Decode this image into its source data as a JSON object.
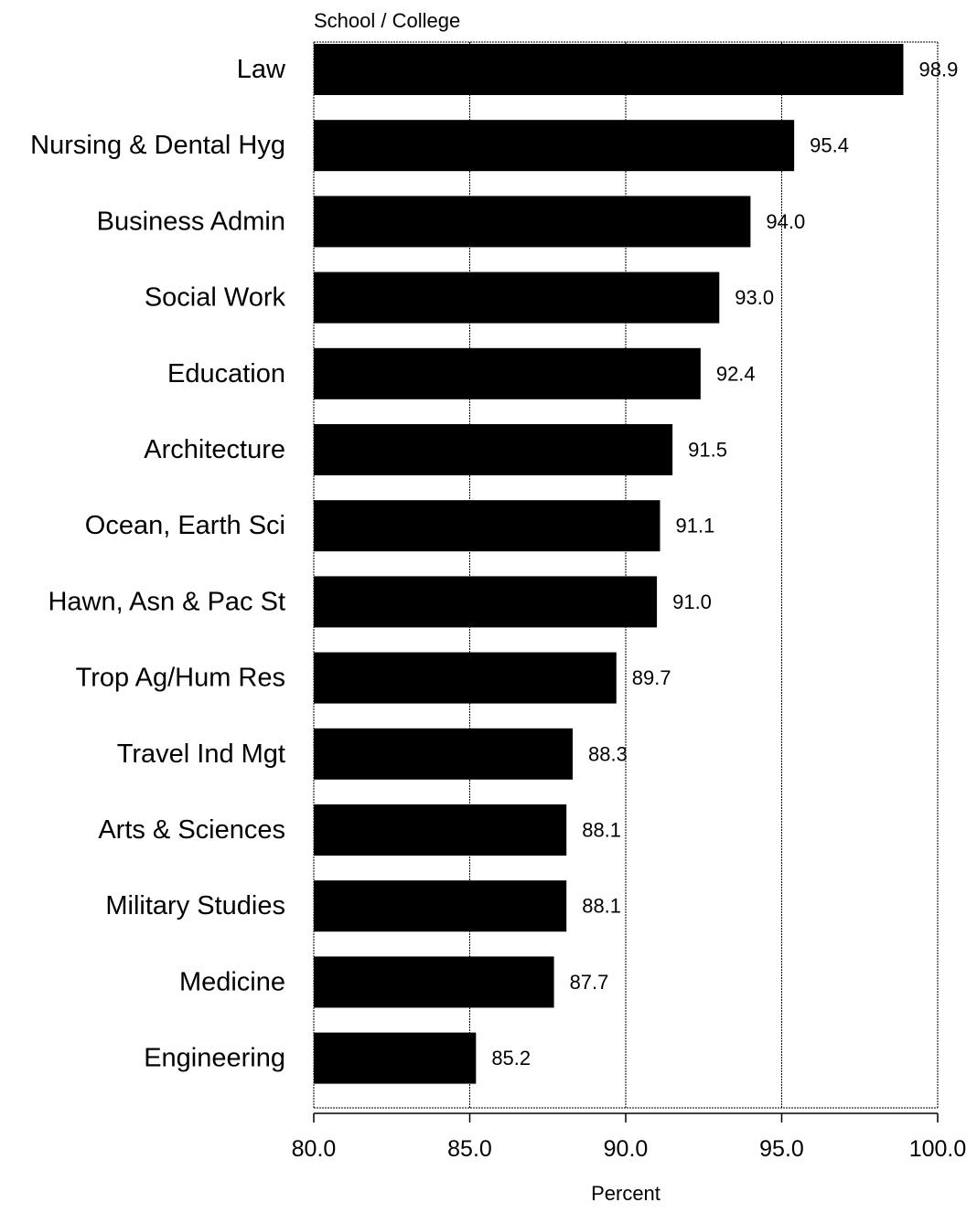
{
  "chart_data": {
    "type": "bar",
    "orientation": "horizontal",
    "title": "School / College",
    "xlabel": "Percent",
    "ylabel": "",
    "categories": [
      "Law",
      "Nursing & Dental Hyg",
      "Business Admin",
      "Social Work",
      "Education",
      "Architecture",
      "Ocean, Earth Sci",
      "Hawn, Asn & Pac St",
      "Trop Ag/Hum Res",
      "Travel Ind Mgt",
      "Arts & Sciences",
      "Military Studies",
      "Medicine",
      "Engineering"
    ],
    "values": [
      98.9,
      95.4,
      94.0,
      93.0,
      92.4,
      91.5,
      91.1,
      91.0,
      89.7,
      88.3,
      88.1,
      88.1,
      87.7,
      85.2
    ],
    "value_labels": [
      "98.9",
      "95.4",
      "94.0",
      "93.0",
      "92.4",
      "91.5",
      "91.1",
      "91.0",
      "89.7",
      "88.3",
      "88.1",
      "88.1",
      "87.7",
      "85.2"
    ],
    "xlim": [
      80,
      100
    ],
    "xticks": [
      80,
      85,
      90,
      95,
      100
    ],
    "xtick_labels": [
      "80.0",
      "85.0",
      "90.0",
      "95.0",
      "100.0"
    ],
    "grid": "vertical",
    "legend": "none",
    "colors": {
      "bar": "#000000",
      "background": "#ffffff",
      "grid": "#000000"
    }
  }
}
